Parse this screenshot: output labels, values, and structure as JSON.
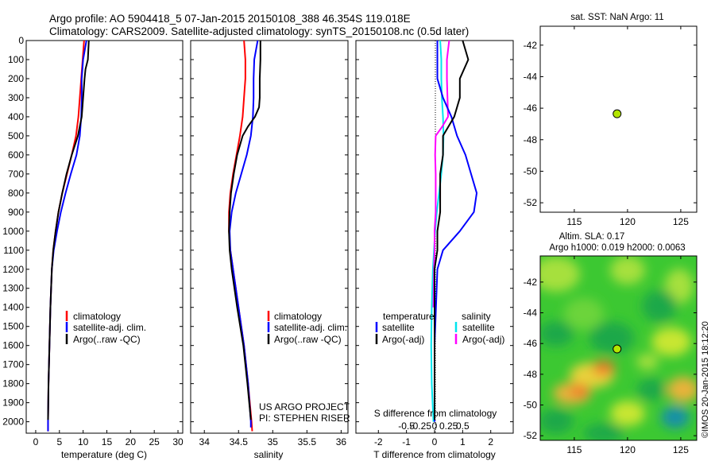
{
  "title_line1": "Argo profile: AO 5904418_5 07-Jan-2015 20150108_388 46.354S 119.018E",
  "title_line2": "Climatology: CARS2009. Satellite-adjusted climatology: synTS_20150108.nc (0.5d later)",
  "colors": {
    "climatology": "#ff0000",
    "satellite": "#0000ff",
    "argo": "#000000",
    "sal_satellite": "#00e5ee",
    "sal_argo": "#ff00ff",
    "dot": "#b3e600"
  },
  "chart_data": [
    {
      "type": "line",
      "id": "temperature",
      "xlabel": "temperature (deg C)",
      "xlim": [
        -2,
        31
      ],
      "ylim": [
        2060,
        0
      ],
      "xticks": [
        0,
        5,
        10,
        15,
        20,
        25,
        30
      ],
      "yticks": [
        0,
        100,
        200,
        300,
        400,
        500,
        600,
        700,
        800,
        900,
        1000,
        1100,
        1200,
        1300,
        1400,
        1500,
        1600,
        1700,
        1800,
        1900,
        2000
      ],
      "legend": [
        "climatology",
        "satellite-adj. clim.",
        "Argo(..raw -QC)"
      ],
      "series": [
        {
          "name": "climatology",
          "depth": [
            0,
            100,
            200,
            300,
            400,
            500,
            600,
            700,
            800,
            900,
            1000,
            1100,
            1200,
            1400,
            1600,
            1800,
            2000,
            2050
          ],
          "values": [
            10.2,
            9.9,
            9.6,
            9.3,
            9.0,
            8.5,
            7.6,
            6.6,
            5.6,
            4.8,
            4.2,
            3.7,
            3.4,
            3.1,
            2.9,
            2.7,
            2.6,
            2.6
          ]
        },
        {
          "name": "satellite-adj. clim.",
          "depth": [
            0,
            100,
            200,
            300,
            400,
            500,
            600,
            700,
            800,
            900,
            1000,
            1100,
            1200,
            1400,
            1600,
            1800,
            2000,
            2050
          ],
          "values": [
            10.7,
            10.0,
            9.7,
            9.7,
            9.6,
            9.3,
            8.6,
            7.4,
            6.3,
            5.3,
            4.5,
            3.8,
            3.4,
            3.1,
            2.9,
            2.7,
            2.6,
            2.6
          ]
        },
        {
          "name": "Argo(..raw -QC)",
          "depth": [
            0,
            100,
            150,
            200,
            300,
            400,
            500,
            600,
            700,
            800,
            900,
            1000,
            1100,
            1200,
            1400,
            1600,
            1800,
            1990
          ],
          "values": [
            11.2,
            11.0,
            10.5,
            10.3,
            10.0,
            9.7,
            8.9,
            7.6,
            6.5,
            5.6,
            4.8,
            4.2,
            3.7,
            3.4,
            3.1,
            2.9,
            2.7,
            2.6
          ]
        }
      ]
    },
    {
      "type": "line",
      "id": "salinity",
      "xlabel": "salinity",
      "xlim": [
        33.8,
        36.1
      ],
      "ylim": [
        2060,
        0
      ],
      "xticks": [
        34,
        34.5,
        35,
        35.5,
        36
      ],
      "legend": [
        "climatology",
        "satellite-adj. clim.",
        "Argo(..raw -QC)"
      ],
      "annotation": [
        "US ARGO PROJECT",
        "PI: STEPHEN RISER"
      ],
      "series": [
        {
          "name": "climatology",
          "depth": [
            0,
            100,
            200,
            300,
            400,
            500,
            600,
            700,
            800,
            900,
            1000,
            1100,
            1200,
            1400,
            1600,
            1800,
            2000,
            2050
          ],
          "values": [
            34.58,
            34.6,
            34.6,
            34.58,
            34.56,
            34.52,
            34.47,
            34.42,
            34.38,
            34.36,
            34.36,
            34.38,
            34.42,
            34.5,
            34.58,
            34.64,
            34.69,
            34.7
          ]
        },
        {
          "name": "satellite-adj. clim.",
          "depth": [
            0,
            100,
            200,
            300,
            400,
            500,
            600,
            700,
            800,
            900,
            1000,
            1100,
            1200,
            1400,
            1600,
            1800,
            2000,
            2030
          ],
          "values": [
            34.78,
            34.73,
            34.72,
            34.72,
            34.71,
            34.68,
            34.62,
            34.54,
            34.46,
            34.4,
            34.37,
            34.38,
            34.42,
            34.5,
            34.58,
            34.64,
            34.68,
            34.68
          ]
        },
        {
          "name": "Argo(..raw -QC)",
          "depth": [
            0,
            100,
            200,
            300,
            350,
            400,
            450,
            500,
            600,
            700,
            800,
            900,
            1000,
            1100,
            1200,
            1400,
            1600,
            1800,
            1990
          ],
          "values": [
            34.82,
            34.82,
            34.81,
            34.81,
            34.8,
            34.74,
            34.64,
            34.56,
            34.48,
            34.43,
            34.39,
            34.37,
            34.36,
            34.37,
            34.4,
            34.48,
            34.57,
            34.63,
            34.68
          ]
        }
      ]
    },
    {
      "type": "line",
      "id": "difference",
      "xlabel": "T difference from climatology",
      "xlabel_top": "S difference from climatology",
      "xlim": [
        -2.8,
        2.8
      ],
      "ylim": [
        2060,
        0
      ],
      "xticks": [
        -2,
        -1,
        0,
        1,
        2
      ],
      "sticks": [
        -0.5,
        -0.25,
        0,
        0.25,
        0.5
      ],
      "s_scale": 0.5,
      "legend_temperature": [
        "temperature",
        "satellite",
        "Argo(-adj)"
      ],
      "legend_salinity": [
        "salinity",
        "satellite",
        "Argo(-adj)"
      ],
      "series": [
        {
          "name": "temperature satellite",
          "depth": [
            0,
            100,
            200,
            300,
            400,
            500,
            600,
            700,
            800,
            900,
            1000,
            1100,
            1200,
            1400,
            1600,
            1800,
            2000
          ],
          "values": [
            0.1,
            0.1,
            0.1,
            0.3,
            0.6,
            0.8,
            1.1,
            1.3,
            1.5,
            1.4,
            0.9,
            0.3,
            0.1,
            0.05,
            0.0,
            0.0,
            0.0
          ]
        },
        {
          "name": "temperature Argo(-adj)",
          "depth": [
            0,
            100,
            200,
            300,
            400,
            500,
            600,
            700,
            800,
            900,
            1000,
            1100,
            1200,
            1400,
            1600,
            1800,
            1990
          ],
          "values": [
            1.0,
            1.2,
            0.9,
            0.9,
            0.7,
            0.3,
            0.3,
            0.2,
            0.2,
            0.2,
            0.1,
            0.1,
            0.0,
            0.0,
            0.0,
            0.0,
            0.0
          ]
        },
        {
          "name": "salinity satellite",
          "depth": [
            0,
            100,
            200,
            300,
            400,
            500,
            600,
            700,
            800,
            900,
            1000,
            1100,
            1200,
            1400,
            1600,
            1800,
            2000
          ],
          "values": [
            0.1,
            0.12,
            0.12,
            0.13,
            0.15,
            0.16,
            0.15,
            0.12,
            0.08,
            0.04,
            0.01,
            -0.01,
            -0.03,
            -0.05,
            -0.06,
            -0.05,
            -0.02
          ]
        },
        {
          "name": "salinity Argo(-adj)",
          "depth": [
            0,
            100,
            200,
            300,
            400,
            450,
            500,
            600,
            700,
            800,
            900,
            1000,
            1100,
            1200,
            1400
          ],
          "values": [
            0.26,
            0.22,
            0.22,
            0.23,
            0.24,
            0.14,
            0.02,
            0.01,
            0.02,
            0.02,
            0.02,
            0.0,
            0.0,
            -0.01,
            -0.02
          ]
        }
      ]
    },
    {
      "type": "scatter",
      "id": "sst_map",
      "title": "sat. SST: NaN  Argo: 11",
      "xlim": [
        111.8,
        126.5
      ],
      "ylim": [
        -52.6,
        -40.8
      ],
      "xticks": [
        115,
        120,
        125
      ],
      "yticks": [
        -42,
        -44,
        -46,
        -48,
        -50,
        -52
      ],
      "point": {
        "x": 119.018,
        "y": -46.354
      }
    },
    {
      "type": "heatmap",
      "id": "sla_map",
      "title_line1": "Altim. SLA: 0.17",
      "title_line2": "Argo h1000: 0.019 h2000: 0.0063",
      "xlim": [
        111.8,
        126.5
      ],
      "ylim": [
        -52.3,
        -40.3
      ],
      "xticks": [
        115,
        120,
        125
      ],
      "yticks": [
        -42,
        -44,
        -46,
        -48,
        -50,
        -52
      ],
      "point": {
        "x": 119.018,
        "y": -46.354
      }
    }
  ],
  "credit": "©IMOS 20-Jan-2015 18:12:20"
}
